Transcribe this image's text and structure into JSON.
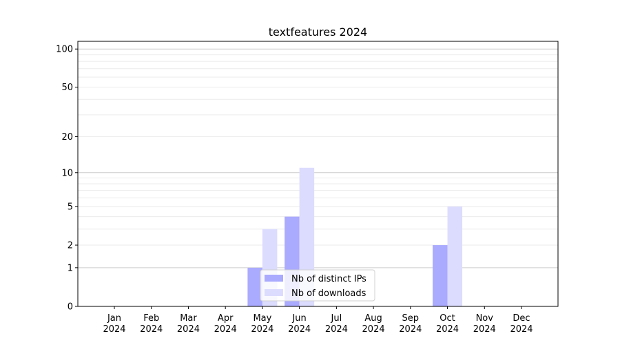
{
  "chart_data": {
    "type": "bar",
    "title": "textfeatures 2024",
    "xlabel": "",
    "ylabel": "",
    "y_scale": "symlog (log of 1+y)",
    "ylim": [
      0,
      115
    ],
    "yticks": [
      0,
      1,
      2,
      5,
      10,
      20,
      50,
      100
    ],
    "grid": true,
    "legend_position": "lower-center",
    "categories": [
      "Jan\n2024",
      "Feb\n2024",
      "Mar\n2024",
      "Apr\n2024",
      "May\n2024",
      "Jun\n2024",
      "Jul\n2024",
      "Aug\n2024",
      "Sep\n2024",
      "Oct\n2024",
      "Nov\n2024",
      "Dec\n2024"
    ],
    "series": [
      {
        "name": "Nb of distinct IPs",
        "color": "#aaaaff",
        "values": [
          0,
          0,
          0,
          0,
          1,
          4,
          0,
          0,
          0,
          2,
          0,
          0
        ]
      },
      {
        "name": "Nb of downloads",
        "color": "#dcdcff",
        "values": [
          0,
          0,
          0,
          0,
          3,
          11,
          0,
          0,
          0,
          5,
          0,
          0
        ]
      }
    ]
  }
}
